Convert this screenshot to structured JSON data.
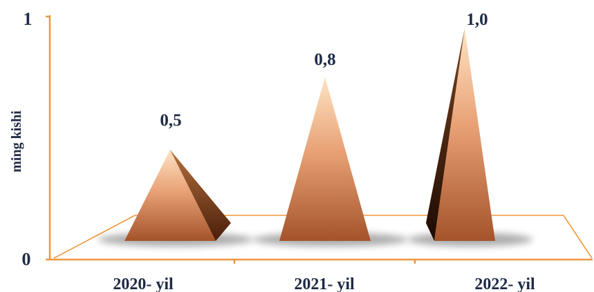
{
  "chart_data": {
    "type": "bar",
    "style": "3d-pyramid",
    "categories": [
      "2020- yil",
      "2021- yil",
      "2022- yil"
    ],
    "values": [
      0.5,
      0.8,
      1.0
    ],
    "data_labels": [
      "0,5",
      "0,8",
      "1,0"
    ],
    "ylabel": "ming kishi",
    "ylim": [
      0,
      1
    ],
    "y_ticks": [
      "0",
      "1"
    ],
    "grid": false,
    "legend": "none",
    "colors": {
      "axis": "#f0963c",
      "label": "#1f2a44",
      "pyramid_light": "#f7caa0",
      "pyramid_mid": "#d98a58",
      "pyramid_dark": "#a4532a",
      "pyramid_shadow": "#5a2a12"
    }
  }
}
